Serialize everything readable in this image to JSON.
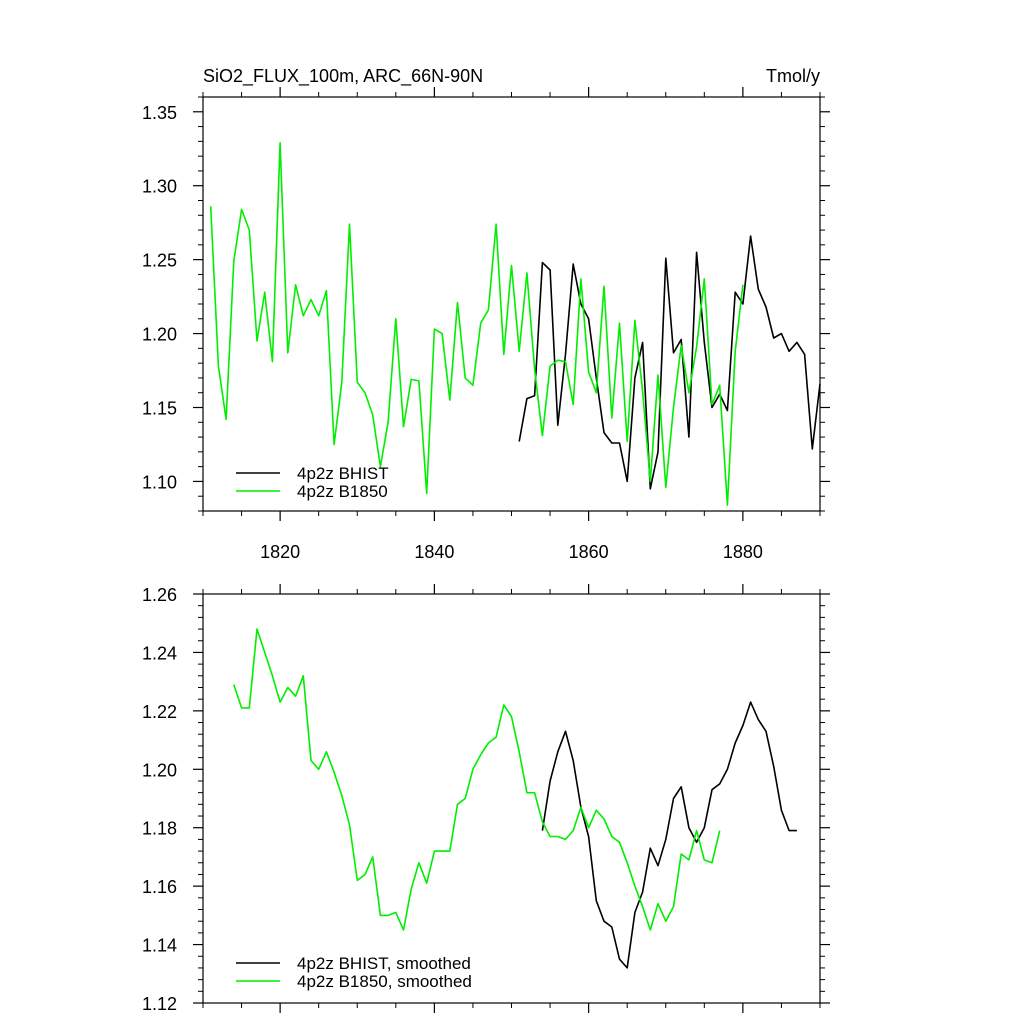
{
  "figure": {
    "title_left": "SiO2_FLUX_100m, ARC_66N-90N",
    "title_right": "Tmol/y"
  },
  "chart_data": [
    {
      "type": "line",
      "title": "SiO2_FLUX_100m, ARC_66N-90N",
      "units": "Tmol/y",
      "xlim": [
        1810,
        1890
      ],
      "ylim": [
        1.08,
        1.36
      ],
      "x_ticks": [
        1820,
        1840,
        1860,
        1880
      ],
      "x_tick_labels": [
        "1820",
        "1840",
        "1860",
        "1880"
      ],
      "y_ticks": [
        1.1,
        1.15,
        1.2,
        1.25,
        1.3,
        1.35
      ],
      "y_tick_labels": [
        "1.10",
        "1.15",
        "1.20",
        "1.25",
        "1.30",
        "1.35"
      ],
      "legend_position": "bottom-left",
      "series": [
        {
          "name": "4p2z BHIST",
          "color": "#000000",
          "x": [
            1851,
            1852,
            1853,
            1854,
            1855,
            1856,
            1857,
            1858,
            1859,
            1860,
            1861,
            1862,
            1863,
            1864,
            1865,
            1866,
            1867,
            1868,
            1869,
            1870,
            1871,
            1872,
            1873,
            1874,
            1875,
            1876,
            1877,
            1878,
            1879,
            1880,
            1881,
            1882,
            1883,
            1884,
            1885,
            1886,
            1887,
            1888,
            1889,
            1890
          ],
          "y": [
            1.127,
            1.156,
            1.158,
            1.248,
            1.243,
            1.138,
            1.186,
            1.247,
            1.22,
            1.21,
            1.17,
            1.133,
            1.126,
            1.126,
            1.1,
            1.17,
            1.194,
            1.095,
            1.12,
            1.251,
            1.187,
            1.196,
            1.13,
            1.255,
            1.194,
            1.15,
            1.159,
            1.148,
            1.228,
            1.22,
            1.266,
            1.23,
            1.218,
            1.197,
            1.2,
            1.188,
            1.194,
            1.186,
            1.122,
            1.166
          ]
        },
        {
          "name": "4p2z B1850",
          "color": "#00ee00",
          "x": [
            1811,
            1812,
            1813,
            1814,
            1815,
            1816,
            1817,
            1818,
            1819,
            1820,
            1821,
            1822,
            1823,
            1824,
            1825,
            1826,
            1827,
            1828,
            1829,
            1830,
            1831,
            1832,
            1833,
            1834,
            1835,
            1836,
            1837,
            1838,
            1839,
            1840,
            1841,
            1842,
            1843,
            1844,
            1845,
            1846,
            1847,
            1848,
            1849,
            1850,
            1851,
            1852,
            1853,
            1854,
            1855,
            1856,
            1857,
            1858,
            1859,
            1860,
            1861,
            1862,
            1863,
            1864,
            1865,
            1866,
            1867,
            1868,
            1869,
            1870,
            1871,
            1872,
            1873,
            1874,
            1875,
            1876,
            1877,
            1878,
            1879,
            1880
          ],
          "y": [
            1.286,
            1.178,
            1.142,
            1.249,
            1.284,
            1.27,
            1.195,
            1.228,
            1.181,
            1.329,
            1.187,
            1.233,
            1.212,
            1.223,
            1.212,
            1.229,
            1.125,
            1.167,
            1.274,
            1.167,
            1.16,
            1.145,
            1.11,
            1.14,
            1.21,
            1.137,
            1.169,
            1.168,
            1.092,
            1.203,
            1.2,
            1.155,
            1.221,
            1.17,
            1.165,
            1.207,
            1.216,
            1.274,
            1.186,
            1.246,
            1.188,
            1.241,
            1.176,
            1.131,
            1.178,
            1.182,
            1.181,
            1.152,
            1.237,
            1.174,
            1.16,
            1.232,
            1.143,
            1.207,
            1.127,
            1.209,
            1.161,
            1.1,
            1.172,
            1.096,
            1.15,
            1.192,
            1.16,
            1.191,
            1.237,
            1.152,
            1.165,
            1.084,
            1.188,
            1.233
          ]
        }
      ]
    },
    {
      "type": "line",
      "xlim": [
        1810,
        1890
      ],
      "ylim": [
        1.12,
        1.26
      ],
      "x_ticks": [
        1820,
        1840,
        1860,
        1880
      ],
      "x_tick_labels": [],
      "y_ticks": [
        1.12,
        1.14,
        1.16,
        1.18,
        1.2,
        1.22,
        1.24,
        1.26
      ],
      "y_tick_labels": [
        "1.12",
        "1.14",
        "1.16",
        "1.18",
        "1.20",
        "1.22",
        "1.24",
        "1.26"
      ],
      "legend_position": "bottom-left",
      "series": [
        {
          "name": "4p2z BHIST, smoothed",
          "color": "#000000",
          "x": [
            1854,
            1855,
            1856,
            1857,
            1858,
            1859,
            1860,
            1861,
            1862,
            1863,
            1864,
            1865,
            1866,
            1867,
            1868,
            1869,
            1870,
            1871,
            1872,
            1873,
            1874,
            1875,
            1876,
            1877,
            1878,
            1879,
            1880,
            1881,
            1882,
            1883,
            1884,
            1885,
            1886,
            1887
          ],
          "y": [
            1.179,
            1.196,
            1.206,
            1.213,
            1.203,
            1.187,
            1.177,
            1.155,
            1.148,
            1.146,
            1.135,
            1.132,
            1.151,
            1.158,
            1.173,
            1.167,
            1.176,
            1.19,
            1.194,
            1.18,
            1.175,
            1.18,
            1.193,
            1.195,
            1.2,
            1.209,
            1.215,
            1.223,
            1.217,
            1.213,
            1.201,
            1.186,
            1.179,
            1.179
          ]
        },
        {
          "name": "4p2z B1850, smoothed",
          "color": "#00ee00",
          "x": [
            1814,
            1815,
            1816,
            1817,
            1818,
            1819,
            1820,
            1821,
            1822,
            1823,
            1824,
            1825,
            1826,
            1827,
            1828,
            1829,
            1830,
            1831,
            1832,
            1833,
            1834,
            1835,
            1836,
            1837,
            1838,
            1839,
            1840,
            1841,
            1842,
            1843,
            1844,
            1845,
            1846,
            1847,
            1848,
            1849,
            1850,
            1851,
            1852,
            1853,
            1854,
            1855,
            1856,
            1857,
            1858,
            1859,
            1860,
            1861,
            1862,
            1863,
            1864,
            1865,
            1866,
            1867,
            1868,
            1869,
            1870,
            1871,
            1872,
            1873,
            1874,
            1875,
            1876,
            1877
          ],
          "y": [
            1.229,
            1.221,
            1.221,
            1.248,
            1.24,
            1.232,
            1.223,
            1.228,
            1.225,
            1.232,
            1.203,
            1.2,
            1.206,
            1.199,
            1.191,
            1.181,
            1.162,
            1.164,
            1.17,
            1.15,
            1.15,
            1.151,
            1.145,
            1.159,
            1.168,
            1.161,
            1.172,
            1.172,
            1.172,
            1.188,
            1.19,
            1.2,
            1.205,
            1.209,
            1.211,
            1.222,
            1.218,
            1.206,
            1.192,
            1.192,
            1.182,
            1.177,
            1.177,
            1.176,
            1.179,
            1.187,
            1.18,
            1.186,
            1.183,
            1.177,
            1.175,
            1.168,
            1.16,
            1.153,
            1.145,
            1.154,
            1.148,
            1.153,
            1.171,
            1.169,
            1.179,
            1.169,
            1.168,
            1.179
          ]
        }
      ]
    }
  ]
}
